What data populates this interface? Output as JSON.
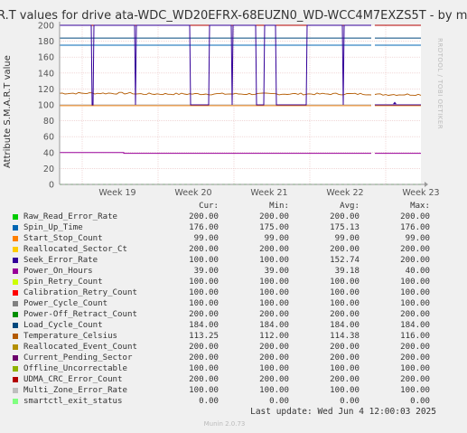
{
  "chart_data": {
    "type": "line",
    "title": "R.T values for drive ata-WDC_WD20EFRX-68EUZN0_WD-WCC4M7EXZS5T - by m",
    "ylabel": "Attribute S.M.A.R.T value",
    "ylim": [
      0,
      200
    ],
    "yticks": [
      "0",
      "20",
      "40",
      "60",
      "80",
      "100",
      "120",
      "140",
      "160",
      "180",
      "200"
    ],
    "xticks": [
      "Week 19",
      "Week 20",
      "Week 21",
      "Week 22",
      "Week 23"
    ],
    "grid": true,
    "series": [
      {
        "name": "Raw_Read_Error_Rate",
        "color": "#00cc00",
        "cur": "200.00",
        "min": "200.00",
        "avg": "200.00",
        "max": "200.00",
        "level": 200
      },
      {
        "name": "Spin_Up_Time",
        "color": "#0066b3",
        "cur": "176.00",
        "min": "175.00",
        "avg": "175.13",
        "max": "176.00",
        "level": 175
      },
      {
        "name": "Start_Stop_Count",
        "color": "#ff8000",
        "cur": "99.00",
        "min": "99.00",
        "avg": "99.00",
        "max": "99.00",
        "level": 99
      },
      {
        "name": "Reallocated_Sector_Ct",
        "color": "#ffcc00",
        "cur": "200.00",
        "min": "200.00",
        "avg": "200.00",
        "max": "200.00",
        "level": 200
      },
      {
        "name": "Seek_Error_Rate",
        "color": "#330099",
        "cur": "100.00",
        "min": "100.00",
        "avg": "152.74",
        "max": "200.00",
        "level": 200
      },
      {
        "name": "Power_On_Hours",
        "color": "#990099",
        "cur": "39.00",
        "min": "39.00",
        "avg": "39.18",
        "max": "40.00",
        "level": 39
      },
      {
        "name": "Spin_Retry_Count",
        "color": "#ccff00",
        "cur": "100.00",
        "min": "100.00",
        "avg": "100.00",
        "max": "100.00",
        "level": 100
      },
      {
        "name": "Calibration_Retry_Count",
        "color": "#ff0000",
        "cur": "100.00",
        "min": "100.00",
        "avg": "100.00",
        "max": "100.00",
        "level": 100
      },
      {
        "name": "Power_Cycle_Count",
        "color": "#808080",
        "cur": "100.00",
        "min": "100.00",
        "avg": "100.00",
        "max": "100.00",
        "level": 100
      },
      {
        "name": "Power-Off_Retract_Count",
        "color": "#008f00",
        "cur": "200.00",
        "min": "200.00",
        "avg": "200.00",
        "max": "200.00",
        "level": 200
      },
      {
        "name": "Load_Cycle_Count",
        "color": "#00487d",
        "cur": "184.00",
        "min": "184.00",
        "avg": "184.00",
        "max": "184.00",
        "level": 184
      },
      {
        "name": "Temperature_Celsius",
        "color": "#b35a00",
        "cur": "113.25",
        "min": "112.00",
        "avg": "114.38",
        "max": "116.00",
        "level": 114
      },
      {
        "name": "Reallocated_Event_Count",
        "color": "#b38f00",
        "cur": "200.00",
        "min": "200.00",
        "avg": "200.00",
        "max": "200.00",
        "level": 200
      },
      {
        "name": "Current_Pending_Sector",
        "color": "#6b006b",
        "cur": "200.00",
        "min": "200.00",
        "avg": "200.00",
        "max": "200.00",
        "level": 200
      },
      {
        "name": "Offline_Uncorrectable",
        "color": "#8fb300",
        "cur": "100.00",
        "min": "100.00",
        "avg": "100.00",
        "max": "100.00",
        "level": 100
      },
      {
        "name": "UDMA_CRC_Error_Count",
        "color": "#b30000",
        "cur": "200.00",
        "min": "200.00",
        "avg": "200.00",
        "max": "200.00",
        "level": 200
      },
      {
        "name": "Multi_Zone_Error_Rate",
        "color": "#bebebe",
        "cur": "100.00",
        "min": "100.00",
        "avg": "100.00",
        "max": "100.00",
        "level": 100
      },
      {
        "name": "smartctl_exit_status",
        "color": "#80ff80",
        "cur": "0.00",
        "min": "0.00",
        "avg": "0.00",
        "max": "0.00",
        "level": 0
      }
    ]
  },
  "legend": {
    "cur": "Cur:",
    "min": "Min:",
    "avg": "Avg:",
    "max": "Max:"
  },
  "watermark": "RRDTOOL / TOBI OETIKER",
  "last_update": "Last update: Wed Jun  4 12:00:03 2025",
  "footer": "Munin 2.0.73"
}
